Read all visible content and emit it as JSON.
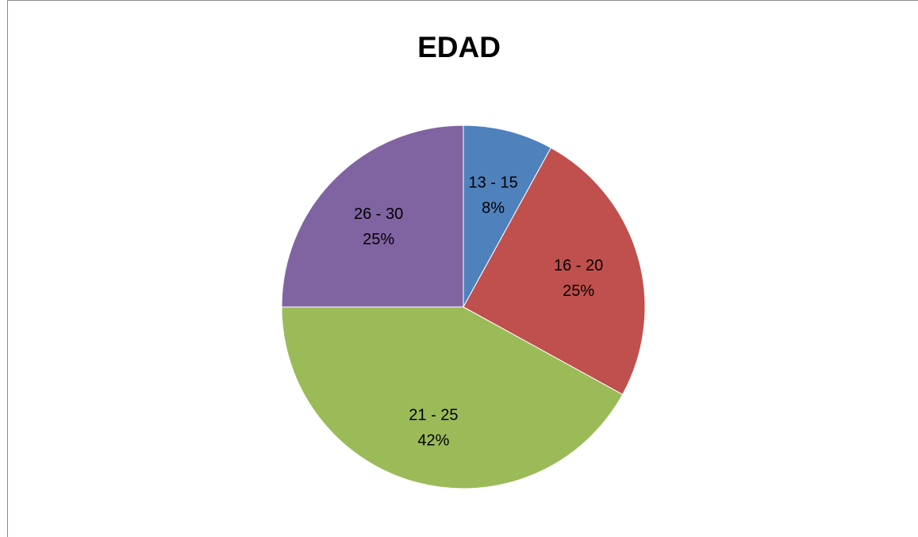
{
  "chart_data": {
    "type": "pie",
    "title": "EDAD",
    "slices": [
      {
        "label": "13 - 15",
        "value": 8,
        "percent_label": "8%",
        "color": "#4f81bd"
      },
      {
        "label": "16 - 20",
        "value": 25,
        "percent_label": "25%",
        "color": "#c0504d"
      },
      {
        "label": "21 - 25",
        "value": 42,
        "percent_label": "42%",
        "color": "#9bbb59"
      },
      {
        "label": "26 - 30",
        "value": 25,
        "percent_label": "25%",
        "color": "#8064a2"
      }
    ],
    "start_angle": "12 o'clock",
    "direction": "clockwise",
    "legend": "none"
  }
}
